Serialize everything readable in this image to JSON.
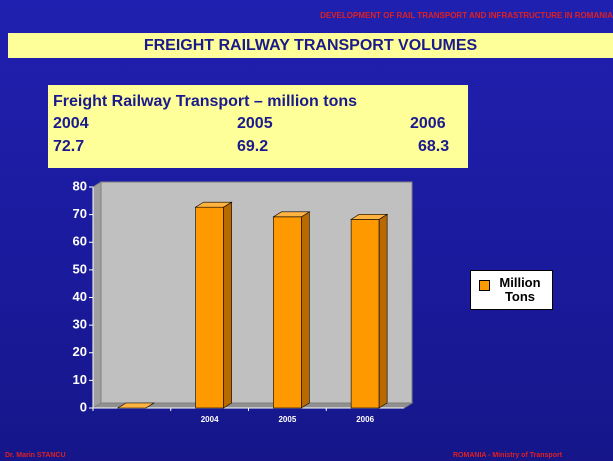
{
  "slide": {
    "header": "DEVELOPMENT OF RAIL TRANSPORT AND INFRASTRUCTURE IN ROMANIA",
    "title": "FREIGHT RAILWAY TRANSPORT VOLUMES",
    "table": {
      "title": "Freight Railway Transport – million tons",
      "years": [
        "2004",
        "2005",
        "2006"
      ],
      "values": [
        "72.7",
        "69.2",
        "68.3"
      ]
    },
    "footer_left": "Dr. Marin STANCU",
    "footer_right": "ROMANIA - Ministry of Transport"
  },
  "chart_data": {
    "type": "bar3d",
    "categories": [
      null,
      "2004",
      "2005",
      "2006"
    ],
    "series": [
      {
        "name": "Million Tons",
        "color": "#ff9900",
        "values": [
          0,
          72.7,
          69.2,
          68.3
        ]
      }
    ],
    "ylim": [
      0,
      80
    ],
    "yticks": [
      0,
      10,
      20,
      30,
      40,
      50,
      60,
      70,
      80
    ],
    "grid": false,
    "legend": "right"
  }
}
